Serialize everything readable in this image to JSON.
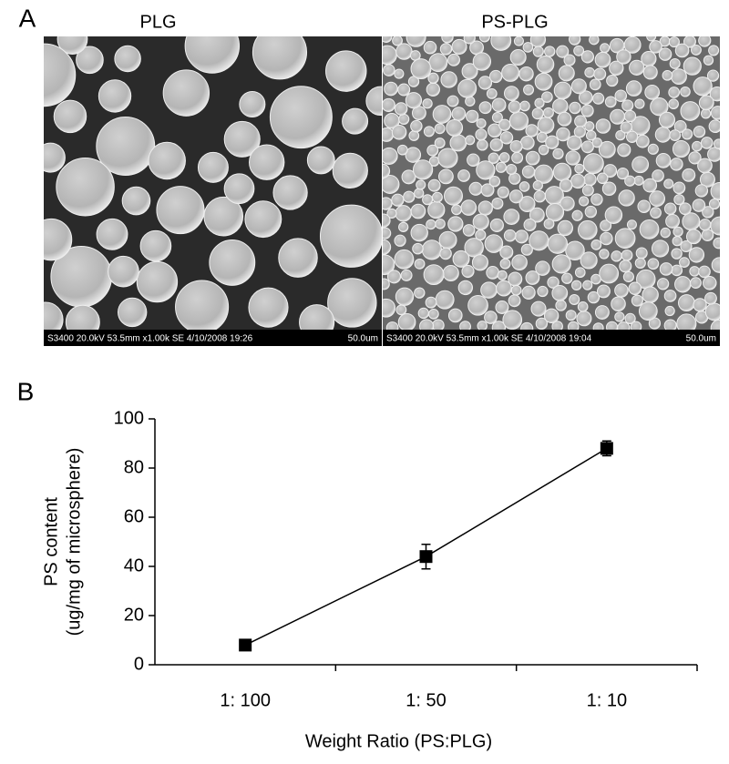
{
  "panel_a": {
    "label": "A",
    "images": [
      {
        "title": "PLG",
        "info": "S3400 20.0kV 53.5mm x1.00k SE 4/10/2008 19:26",
        "scale": "50.0um"
      },
      {
        "title": "PS-PLG",
        "info": "S3400 20.0kV 53.5mm x1.00k SE 4/10/2008 19:04",
        "scale": "50.0um"
      }
    ]
  },
  "panel_b_label": "B",
  "chart_data": {
    "type": "line",
    "categories": [
      "1: 100",
      "1: 50",
      "1: 10"
    ],
    "values": [
      8,
      44,
      88
    ],
    "errors": [
      1,
      5,
      3
    ],
    "color": "#000000",
    "xlabel": "Weight Ratio (PS:PLG)",
    "ylabel": [
      "PS content",
      "(ug/mg of microsphere)"
    ],
    "ylim": [
      0,
      100
    ],
    "yticks": [
      0,
      20,
      40,
      60,
      80,
      100
    ]
  }
}
